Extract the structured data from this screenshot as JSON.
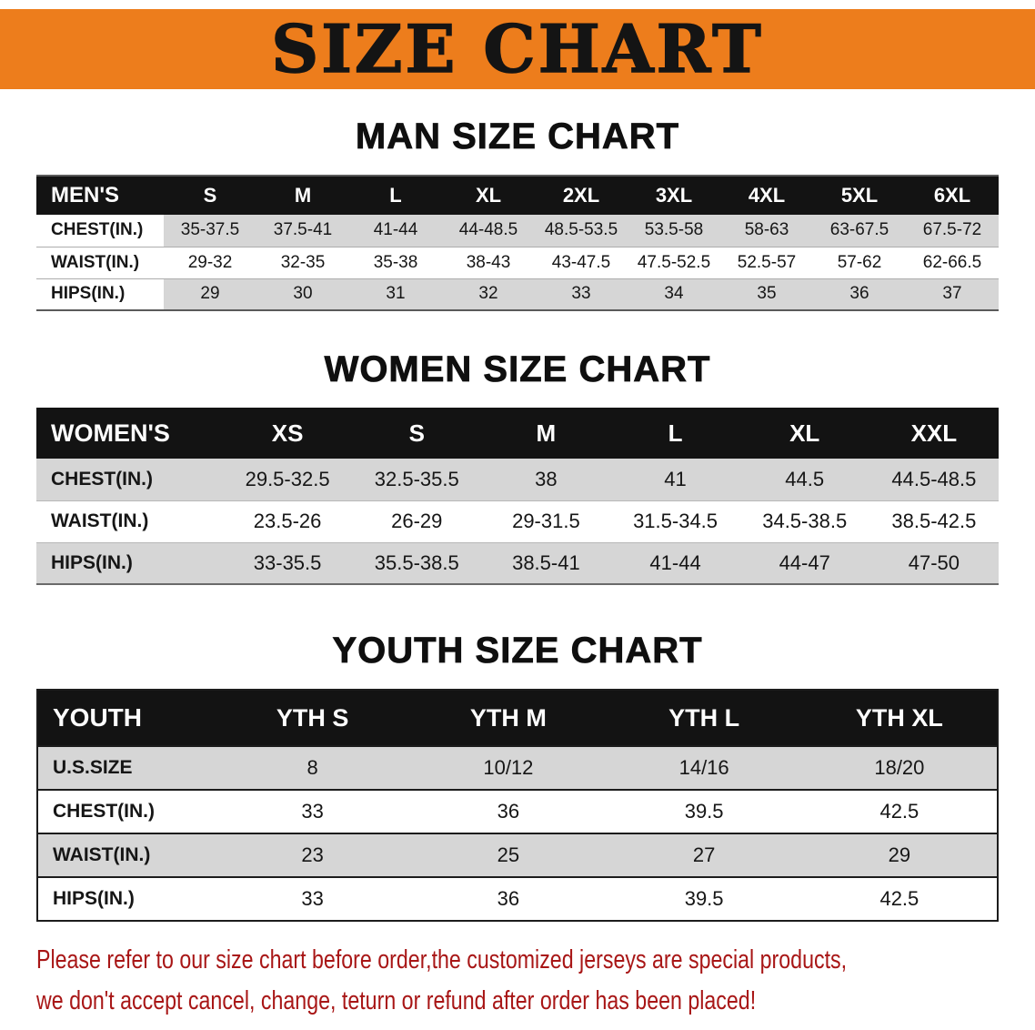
{
  "banner": {
    "title": "SIZE CHART"
  },
  "colors": {
    "banner_bg": "#ED7D1C",
    "table_header_bg": "#131313",
    "row_shade": "#D6D6D6",
    "disclaimer_red": "#A81616"
  },
  "men": {
    "heading": "MAN SIZE CHART",
    "label": "MEN'S",
    "sizes": [
      "S",
      "M",
      "L",
      "XL",
      "2XL",
      "3XL",
      "4XL",
      "5XL",
      "6XL"
    ],
    "rows": [
      {
        "label": "CHEST(IN.)",
        "values": [
          "35-37.5",
          "37.5-41",
          "41-44",
          "44-48.5",
          "48.5-53.5",
          "53.5-58",
          "58-63",
          "63-67.5",
          "67.5-72"
        ]
      },
      {
        "label": "WAIST(IN.)",
        "values": [
          "29-32",
          "32-35",
          "35-38",
          "38-43",
          "43-47.5",
          "47.5-52.5",
          "52.5-57",
          "57-62",
          "62-66.5"
        ]
      },
      {
        "label": "HIPS(IN.)",
        "values": [
          "29",
          "30",
          "31",
          "32",
          "33",
          "34",
          "35",
          "36",
          "37"
        ]
      }
    ]
  },
  "women": {
    "heading": "WOMEN SIZE CHART",
    "label": "WOMEN'S",
    "sizes": [
      "XS",
      "S",
      "M",
      "L",
      "XL",
      "XXL"
    ],
    "rows": [
      {
        "label": "CHEST(IN.)",
        "values": [
          "29.5-32.5",
          "32.5-35.5",
          "38",
          "41",
          "44.5",
          "44.5-48.5"
        ]
      },
      {
        "label": "WAIST(IN.)",
        "values": [
          "23.5-26",
          "26-29",
          "29-31.5",
          "31.5-34.5",
          "34.5-38.5",
          "38.5-42.5"
        ]
      },
      {
        "label": "HIPS(IN.)",
        "values": [
          "33-35.5",
          "35.5-38.5",
          "38.5-41",
          "41-44",
          "44-47",
          "47-50"
        ]
      }
    ]
  },
  "youth": {
    "heading": "YOUTH SIZE CHART",
    "label": "YOUTH",
    "sizes": [
      "YTH S",
      "YTH M",
      "YTH L",
      "YTH XL"
    ],
    "rows": [
      {
        "label": "U.S.SIZE",
        "values": [
          "8",
          "10/12",
          "14/16",
          "18/20"
        ]
      },
      {
        "label": "CHEST(IN.)",
        "values": [
          "33",
          "36",
          "39.5",
          "42.5"
        ]
      },
      {
        "label": "WAIST(IN.)",
        "values": [
          "23",
          "25",
          "27",
          "29"
        ]
      },
      {
        "label": "HIPS(IN.)",
        "values": [
          "33",
          "36",
          "39.5",
          "42.5"
        ]
      }
    ]
  },
  "disclaimer": {
    "line1": "Please refer to our size chart before order,the customized jerseys are special products,",
    "line2": "we don't accept cancel, change, teturn or refund after order has been placed!"
  }
}
